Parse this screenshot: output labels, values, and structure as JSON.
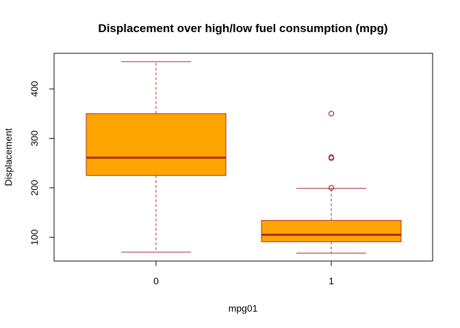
{
  "chart_data": {
    "type": "boxplot",
    "title": "Displacement over  high/low fuel consumption (mpg)",
    "xlabel": "mpg01",
    "ylabel": "Displacement",
    "categories": [
      "0",
      "1"
    ],
    "ylim": [
      52,
      472
    ],
    "y_ticks": [
      100,
      200,
      300,
      400
    ],
    "grid": false,
    "colors": {
      "box_fill": "#FFA500",
      "box_border": "#A52A2A"
    },
    "boxes": [
      {
        "category": "0",
        "whisker_low": 70,
        "q1": 225,
        "median": 261,
        "q3": 350,
        "whisker_high": 455,
        "outliers": []
      },
      {
        "category": "1",
        "whisker_low": 68,
        "q1": 91,
        "median": 105,
        "q3": 134,
        "whisker_high": 199,
        "outliers": [
          200,
          260,
          262,
          350
        ]
      }
    ]
  }
}
